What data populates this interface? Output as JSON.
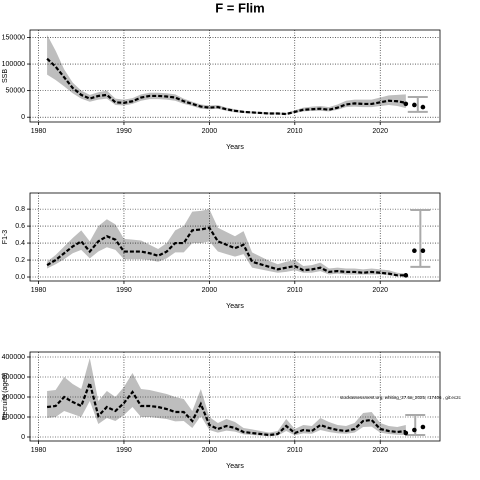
{
  "title": "F = Flim",
  "chart_data": [
    {
      "type": "line",
      "ylabel": "SSB",
      "xlabel": "Years",
      "color": "#000000",
      "band_color": "#bebebe",
      "grid": true,
      "xlim": [
        1979,
        2027
      ],
      "xticks": [
        1980,
        1990,
        2000,
        2010,
        2020
      ],
      "ylim": [
        -9000,
        164000
      ],
      "yticks": [
        0,
        50000,
        100000,
        150000
      ],
      "x": [
        1981,
        1982,
        1983,
        1984,
        1985,
        1986,
        1987,
        1988,
        1989,
        1990,
        1991,
        1992,
        1993,
        1994,
        1995,
        1996,
        1997,
        1998,
        1999,
        2000,
        2001,
        2002,
        2003,
        2004,
        2005,
        2006,
        2007,
        2008,
        2009,
        2010,
        2011,
        2012,
        2013,
        2014,
        2015,
        2016,
        2017,
        2018,
        2019,
        2020,
        2021,
        2022,
        2023
      ],
      "values": [
        110000,
        95000,
        75000,
        55000,
        42000,
        35000,
        40000,
        42000,
        28000,
        27000,
        30000,
        37000,
        40000,
        40000,
        39000,
        37000,
        30000,
        25000,
        20000,
        18000,
        19000,
        15000,
        12000,
        10000,
        9000,
        8000,
        7000,
        7000,
        6000,
        10000,
        14000,
        15000,
        16000,
        14000,
        18000,
        24000,
        26000,
        25000,
        25000,
        28000,
        31000,
        30000,
        27000
      ],
      "upper": [
        155000,
        125000,
        90000,
        65000,
        50000,
        42000,
        47000,
        50000,
        35000,
        33000,
        36000,
        43000,
        46000,
        46000,
        45000,
        43000,
        35000,
        29000,
        24000,
        22000,
        23000,
        18000,
        15000,
        12000,
        11000,
        10000,
        9000,
        9000,
        8000,
        13000,
        18000,
        20000,
        21000,
        19000,
        24000,
        31000,
        33000,
        33000,
        33000,
        37000,
        41000,
        42000,
        43000
      ],
      "lower": [
        80000,
        70000,
        58000,
        45000,
        35000,
        29000,
        33000,
        35000,
        23000,
        22000,
        25000,
        31000,
        34000,
        34000,
        33000,
        31000,
        25000,
        21000,
        16000,
        15000,
        16000,
        12000,
        9000,
        8000,
        7000,
        6000,
        5000,
        5000,
        4500,
        8000,
        11000,
        12000,
        12000,
        11000,
        14000,
        19000,
        20000,
        19000,
        19000,
        21000,
        23000,
        21000,
        17000
      ],
      "points": {
        "x": [
          2023,
          2024,
          2025
        ],
        "values": [
          25000,
          23000,
          19000
        ]
      },
      "interval": {
        "x": 2024.4,
        "low": 10000,
        "high": 38000
      }
    },
    {
      "type": "line",
      "ylabel": "F1-3",
      "xlabel": "Years",
      "color": "#000000",
      "band_color": "#bebebe",
      "grid": true,
      "xlim": [
        1979,
        2027
      ],
      "xticks": [
        1980,
        1990,
        2000,
        2010,
        2020
      ],
      "ylim": [
        -0.047,
        0.99
      ],
      "yticks": [
        {
          "value": 0,
          "label": "0.0"
        },
        {
          "value": 0.2,
          "label": "0.2"
        },
        {
          "value": 0.4,
          "label": "0.4"
        },
        {
          "value": 0.6,
          "label": "0.6"
        },
        {
          "value": 0.8,
          "label": "0.8"
        }
      ],
      "x": [
        1981,
        1982,
        1983,
        1984,
        1985,
        1986,
        1987,
        1988,
        1989,
        1990,
        1991,
        1992,
        1993,
        1994,
        1995,
        1996,
        1997,
        1998,
        1999,
        2000,
        2001,
        2002,
        2003,
        2004,
        2005,
        2006,
        2007,
        2008,
        2009,
        2010,
        2011,
        2012,
        2013,
        2014,
        2015,
        2016,
        2017,
        2018,
        2019,
        2020,
        2021,
        2022,
        2023
      ],
      "values": [
        0.14,
        0.2,
        0.28,
        0.36,
        0.42,
        0.3,
        0.42,
        0.48,
        0.44,
        0.3,
        0.3,
        0.3,
        0.28,
        0.25,
        0.3,
        0.4,
        0.4,
        0.55,
        0.56,
        0.58,
        0.42,
        0.38,
        0.34,
        0.38,
        0.18,
        0.15,
        0.12,
        0.09,
        0.11,
        0.13,
        0.08,
        0.09,
        0.11,
        0.06,
        0.07,
        0.06,
        0.06,
        0.05,
        0.06,
        0.05,
        0.04,
        0.02,
        0.02
      ],
      "upper": [
        0.18,
        0.26,
        0.36,
        0.46,
        0.55,
        0.42,
        0.6,
        0.68,
        0.62,
        0.45,
        0.44,
        0.43,
        0.38,
        0.33,
        0.4,
        0.55,
        0.6,
        0.77,
        0.78,
        0.8,
        0.58,
        0.53,
        0.48,
        0.54,
        0.29,
        0.24,
        0.19,
        0.15,
        0.18,
        0.2,
        0.13,
        0.14,
        0.17,
        0.1,
        0.11,
        0.1,
        0.1,
        0.09,
        0.1,
        0.09,
        0.08,
        0.05,
        0.04
      ],
      "lower": [
        0.1,
        0.15,
        0.21,
        0.28,
        0.32,
        0.22,
        0.3,
        0.35,
        0.32,
        0.21,
        0.21,
        0.21,
        0.2,
        0.18,
        0.22,
        0.29,
        0.29,
        0.4,
        0.4,
        0.42,
        0.3,
        0.27,
        0.24,
        0.27,
        0.11,
        0.09,
        0.07,
        0.05,
        0.06,
        0.08,
        0.05,
        0.05,
        0.07,
        0.03,
        0.04,
        0.03,
        0.03,
        0.03,
        0.03,
        0.03,
        0.02,
        0.01,
        0.01
      ],
      "points": {
        "x": [
          2023,
          2024,
          2025
        ],
        "values": [
          0.02,
          0.31,
          0.31
        ]
      },
      "interval": {
        "x": 2024.7,
        "low": 0.12,
        "high": 0.79
      }
    },
    {
      "type": "line",
      "ylabel": "Recruits (age0)",
      "xlabel": "Years",
      "color": "#000000",
      "band_color": "#bebebe",
      "grid": true,
      "xlim": [
        1979,
        2027
      ],
      "xticks": [
        1980,
        1990,
        2000,
        2010,
        2020
      ],
      "ylim": [
        -20000,
        425000
      ],
      "yticks": [
        0,
        100000,
        200000,
        300000,
        400000
      ],
      "x": [
        1981,
        1982,
        1983,
        1984,
        1985,
        1986,
        1987,
        1988,
        1989,
        1990,
        1991,
        1992,
        1993,
        1994,
        1995,
        1996,
        1997,
        1998,
        1999,
        2000,
        2001,
        2002,
        2003,
        2004,
        2005,
        2006,
        2007,
        2008,
        2009,
        2010,
        2011,
        2012,
        2013,
        2014,
        2015,
        2016,
        2017,
        2018,
        2019,
        2020,
        2021,
        2022,
        2023
      ],
      "values": [
        150000,
        155000,
        200000,
        175000,
        155000,
        270000,
        105000,
        150000,
        130000,
        170000,
        225000,
        155000,
        155000,
        150000,
        140000,
        125000,
        125000,
        80000,
        165000,
        60000,
        40000,
        55000,
        45000,
        25000,
        20000,
        15000,
        10000,
        15000,
        55000,
        20000,
        35000,
        30000,
        60000,
        45000,
        35000,
        30000,
        40000,
        80000,
        85000,
        40000,
        30000,
        25000,
        30000
      ],
      "upper": [
        230000,
        235000,
        300000,
        265000,
        240000,
        395000,
        180000,
        230000,
        200000,
        250000,
        320000,
        240000,
        235000,
        225000,
        215000,
        200000,
        190000,
        130000,
        240000,
        100000,
        70000,
        90000,
        75000,
        45000,
        38000,
        30000,
        22000,
        30000,
        90000,
        40000,
        60000,
        55000,
        95000,
        75000,
        60000,
        55000,
        70000,
        120000,
        125000,
        70000,
        55000,
        50000,
        60000
      ],
      "lower": [
        95000,
        100000,
        130000,
        115000,
        100000,
        180000,
        65000,
        95000,
        80000,
        110000,
        150000,
        100000,
        100000,
        95000,
        90000,
        78000,
        80000,
        45000,
        105000,
        35000,
        22000,
        32000,
        27000,
        13000,
        10000,
        7000,
        4000,
        7000,
        30000,
        9000,
        18000,
        16000,
        35000,
        25000,
        19000,
        16000,
        22000,
        50000,
        52000,
        22000,
        15000,
        11000,
        10000
      ],
      "points": {
        "x": [
          2023,
          2024,
          2025
        ],
        "values": [
          20000,
          35000,
          50000
        ]
      },
      "interval": {
        "x": 2024.1,
        "low": 10000,
        "high": 110000
      },
      "annotation": "stockassessment.org, whiting_27.6a_2025, r17406 , git:ec2c"
    }
  ]
}
